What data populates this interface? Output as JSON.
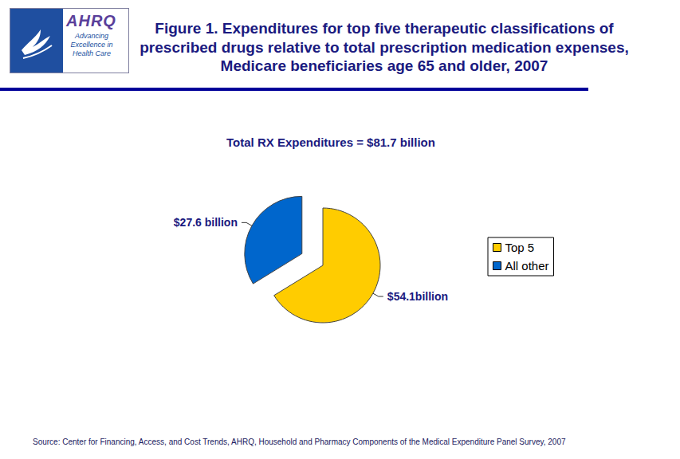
{
  "page": {
    "logo_text": "AHRQ",
    "logo_tagline": "Advancing Excellence in Health Care",
    "source": "Source: Center for Financing, Access, and Cost Trends, AHRQ, Household and Pharmacy Components of the Medical Expenditure Panel Survey, 2007"
  },
  "chart_data": {
    "type": "pie",
    "title": "Figure 1. Expenditures for top five therapeutic classifications of prescribed drugs relative to total prescription medication expenses, Medicare beneficiaries age 65 and older, 2007",
    "subtitle": "Total RX Expenditures = $81.7 billion",
    "categories": [
      "Top 5",
      "All other"
    ],
    "values": [
      54.1,
      27.6
    ],
    "value_labels": [
      "$54.1billion",
      "$27.6 billion"
    ],
    "colors": [
      "#ffcc00",
      "#0066cc"
    ],
    "data_labels": true,
    "legend": "right"
  }
}
